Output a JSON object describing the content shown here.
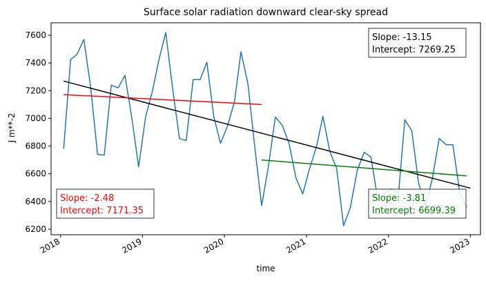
{
  "chart_data": {
    "type": "line",
    "title": "Surface solar radiation downward clear-sky spread",
    "xlabel": "time",
    "ylabel": "J m**-2",
    "xlim": [
      "2017-11-20",
      "2023-02-15"
    ],
    "ylim": [
      6160,
      7690
    ],
    "xticks": [
      {
        "date": "2018-01-01",
        "label": "2018"
      },
      {
        "date": "2019-01-01",
        "label": "2019"
      },
      {
        "date": "2020-01-01",
        "label": "2020"
      },
      {
        "date": "2021-01-01",
        "label": "2021"
      },
      {
        "date": "2022-01-01",
        "label": "2022"
      },
      {
        "date": "2023-01-01",
        "label": "2023"
      }
    ],
    "yticks": [
      6200,
      6400,
      6600,
      6800,
      7000,
      7200,
      7400,
      7600
    ],
    "grid": false,
    "series": [
      {
        "color": "#1f77b4",
        "x": [
          "2018-01-15",
          "2018-02-15",
          "2018-03-15",
          "2018-04-15",
          "2018-05-15",
          "2018-06-15",
          "2018-07-15",
          "2018-08-15",
          "2018-09-15",
          "2018-10-15",
          "2018-11-15",
          "2018-12-15",
          "2019-01-15",
          "2019-02-15",
          "2019-03-15",
          "2019-04-15",
          "2019-05-15",
          "2019-06-15",
          "2019-07-15",
          "2019-08-15",
          "2019-09-15",
          "2019-10-15",
          "2019-11-15",
          "2019-12-15",
          "2020-01-15",
          "2020-02-15",
          "2020-03-15",
          "2020-04-15",
          "2020-05-15",
          "2020-06-15",
          "2020-07-15",
          "2020-08-15",
          "2020-09-15",
          "2020-10-15",
          "2020-11-15",
          "2020-12-15",
          "2021-01-15",
          "2021-02-15",
          "2021-03-15",
          "2021-04-15",
          "2021-05-15",
          "2021-06-15",
          "2021-07-15",
          "2021-08-15",
          "2021-09-15",
          "2021-10-15",
          "2021-11-15",
          "2021-12-15",
          "2022-01-15",
          "2022-02-15",
          "2022-03-15",
          "2022-04-15",
          "2022-05-15",
          "2022-06-15",
          "2022-07-15",
          "2022-08-15",
          "2022-09-15",
          "2022-10-15",
          "2022-11-15",
          "2022-12-15"
        ],
        "y": [
          6780,
          7425,
          7460,
          7570,
          7230,
          6740,
          6735,
          7240,
          7220,
          7310,
          7000,
          6650,
          7010,
          7200,
          7420,
          7620,
          7220,
          6855,
          6840,
          7280,
          7280,
          7405,
          7010,
          6820,
          6945,
          7120,
          7480,
          7250,
          6800,
          6370,
          6650,
          7010,
          6950,
          6820,
          6570,
          6455,
          6640,
          6800,
          7015,
          6760,
          6640,
          6225,
          6355,
          6625,
          6755,
          6720,
          6410,
          6460,
          6490,
          6460,
          6990,
          6910,
          6535,
          6370,
          6560,
          6855,
          6810,
          6810,
          6460,
          6360
        ]
      },
      {
        "color": "#000000",
        "x": [
          "2018-01-15",
          "2023-01-01"
        ],
        "y": [
          7269.25,
          6496
        ]
      },
      {
        "color": "#ff0000",
        "x": [
          "2018-01-15",
          "2020-06-15"
        ],
        "y": [
          7171.35,
          7100
        ]
      },
      {
        "color": "#008000",
        "x": [
          "2020-06-15",
          "2022-12-15"
        ],
        "y": [
          6699.39,
          6585
        ]
      }
    ],
    "annotations": [
      {
        "id": "overall",
        "color": "#000000",
        "placement": "top-right",
        "slope": "Slope: -13.15",
        "intercept": "Intercept: 7269.25"
      },
      {
        "id": "first",
        "color": "#ff0000",
        "placement": "bottom-left",
        "slope": "Slope: -2.48",
        "intercept": "Intercept: 7171.35"
      },
      {
        "id": "second",
        "color": "#008000",
        "placement": "bottom-right",
        "slope": "Slope: -3.81",
        "intercept": "Intercept: 6699.39"
      }
    ]
  }
}
